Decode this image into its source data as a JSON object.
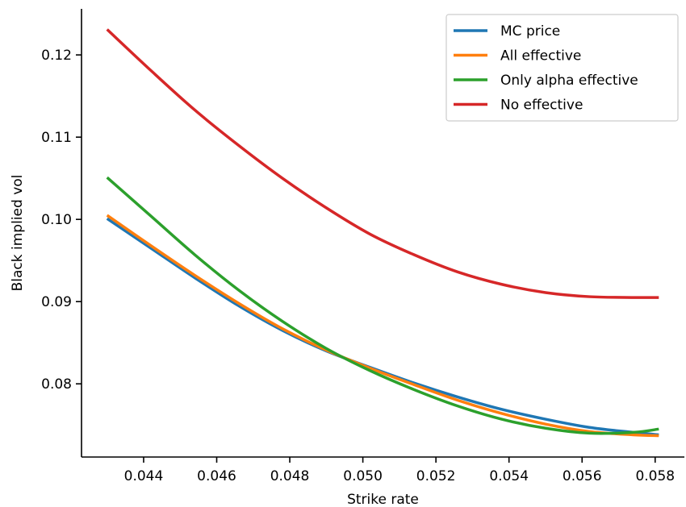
{
  "chart_data": {
    "type": "line",
    "xlabel": "Strike rate",
    "ylabel": "Black implied vol",
    "xlim": [
      0.0423,
      0.0588
    ],
    "ylim": [
      0.0711,
      0.1256
    ],
    "x_ticks": [
      {
        "value": 0.044,
        "label": "0.044"
      },
      {
        "value": 0.046,
        "label": "0.046"
      },
      {
        "value": 0.048,
        "label": "0.048"
      },
      {
        "value": 0.05,
        "label": "0.050"
      },
      {
        "value": 0.052,
        "label": "0.052"
      },
      {
        "value": 0.054,
        "label": "0.054"
      },
      {
        "value": 0.056,
        "label": "0.056"
      },
      {
        "value": 0.058,
        "label": "0.058"
      }
    ],
    "y_ticks": [
      {
        "value": 0.08,
        "label": "0.08"
      },
      {
        "value": 0.09,
        "label": "0.09"
      },
      {
        "value": 0.1,
        "label": "0.10"
      },
      {
        "value": 0.11,
        "label": "0.11"
      },
      {
        "value": 0.12,
        "label": "0.12"
      }
    ],
    "grid": false,
    "legend_position": "top-right",
    "x": [
      0.043,
      0.0442,
      0.0454,
      0.0466,
      0.0478,
      0.049,
      0.0502,
      0.0514,
      0.0526,
      0.0538,
      0.055,
      0.0562,
      0.0574,
      0.0581
    ],
    "series": [
      {
        "name": "MC price",
        "color": "#1f77b4",
        "values": [
          0.1001,
          0.0965,
          0.0929,
          0.0895,
          0.0865,
          0.084,
          0.082,
          0.0801,
          0.0784,
          0.0769,
          0.0757,
          0.0747,
          0.0741,
          0.0738
        ]
      },
      {
        "name": "All effective",
        "color": "#ff7f0e",
        "values": [
          0.1005,
          0.0968,
          0.0932,
          0.0898,
          0.0867,
          0.0841,
          0.0819,
          0.0799,
          0.078,
          0.0764,
          0.0751,
          0.0742,
          0.0738,
          0.0737
        ]
      },
      {
        "name": "Only alpha effective",
        "color": "#2ca02c",
        "values": [
          0.1051,
          0.1004,
          0.0957,
          0.0914,
          0.0876,
          0.0843,
          0.0816,
          0.0793,
          0.0773,
          0.0757,
          0.0746,
          0.074,
          0.0741,
          0.0745
        ]
      },
      {
        "name": "No effective",
        "color": "#d62728",
        "values": [
          0.1231,
          0.1181,
          0.1133,
          0.109,
          0.105,
          0.1014,
          0.0982,
          0.0957,
          0.0936,
          0.0921,
          0.0911,
          0.0906,
          0.0905,
          0.0905
        ]
      }
    ]
  }
}
